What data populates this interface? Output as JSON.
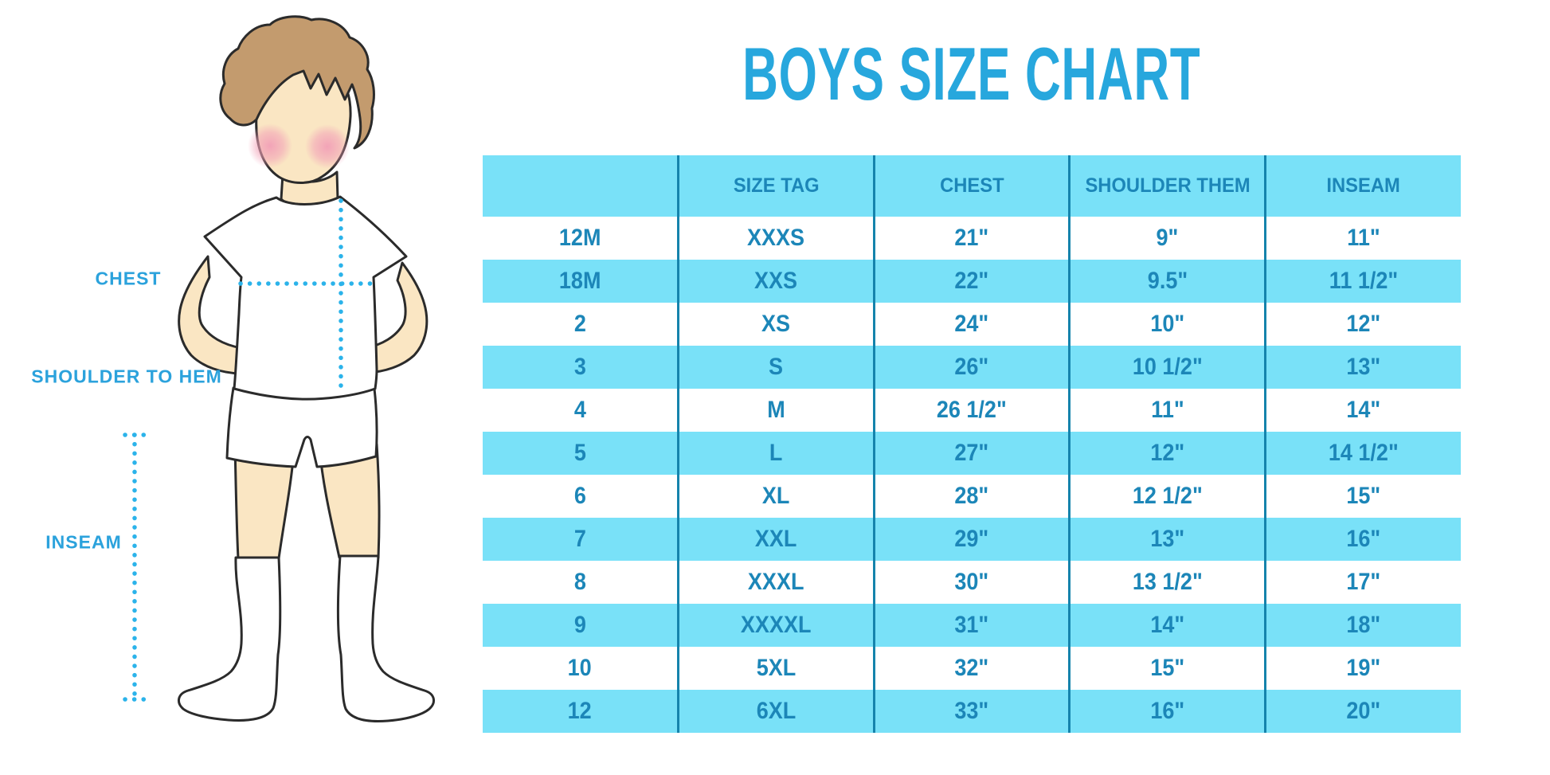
{
  "title": "BOYS SIZE CHART",
  "figure": {
    "labels": {
      "chest": "CHEST",
      "shoulder_to_hem": "SHOULDER TO HEM",
      "inseam": "INSEAM"
    }
  },
  "chart_data": {
    "type": "table",
    "title": "BOYS SIZE CHART",
    "columns": [
      "",
      "SIZE TAG",
      "CHEST",
      "SHOULDER THEM",
      "INSEAM"
    ],
    "rows": [
      [
        "12M",
        "XXXS",
        "21\"",
        "9\"",
        "11\""
      ],
      [
        "18M",
        "XXS",
        "22\"",
        "9.5\"",
        "11 1/2\""
      ],
      [
        "2",
        "XS",
        "24\"",
        "10\"",
        "12\""
      ],
      [
        "3",
        "S",
        "26\"",
        "10 1/2\"",
        "13\""
      ],
      [
        "4",
        "M",
        "26 1/2\"",
        "11\"",
        "14\""
      ],
      [
        "5",
        "L",
        "27\"",
        "12\"",
        "14 1/2\""
      ],
      [
        "6",
        "XL",
        "28\"",
        "12 1/2\"",
        "15\""
      ],
      [
        "7",
        "XXL",
        "29\"",
        "13\"",
        "16\""
      ],
      [
        "8",
        "XXXL",
        "30\"",
        "13 1/2\"",
        "17\""
      ],
      [
        "9",
        "XXXXL",
        "31\"",
        "14\"",
        "18\""
      ],
      [
        "10",
        "5XL",
        "32\"",
        "15\"",
        "19\""
      ],
      [
        "12",
        "6XL",
        "33\"",
        "16\"",
        "20\""
      ]
    ],
    "layout": {
      "zebra_striping": true,
      "header_background": "#79E1F8",
      "row_alt_background": "#79E1F8",
      "grid": "vertical-separators-only"
    }
  },
  "colors": {
    "title_blue": "#27A7DD",
    "label_blue": "#2BA2DC",
    "table_band_cyan": "#79E1F8",
    "table_text_blue": "#1C86B8",
    "column_separator": "#1583AC",
    "dotted_line_blue": "#2BB3EA",
    "skin": "#FAE6C3",
    "hair_brown": "#C39B6E",
    "cheek_pink": "#F2A0B7",
    "outline": "#2B2B2B"
  }
}
